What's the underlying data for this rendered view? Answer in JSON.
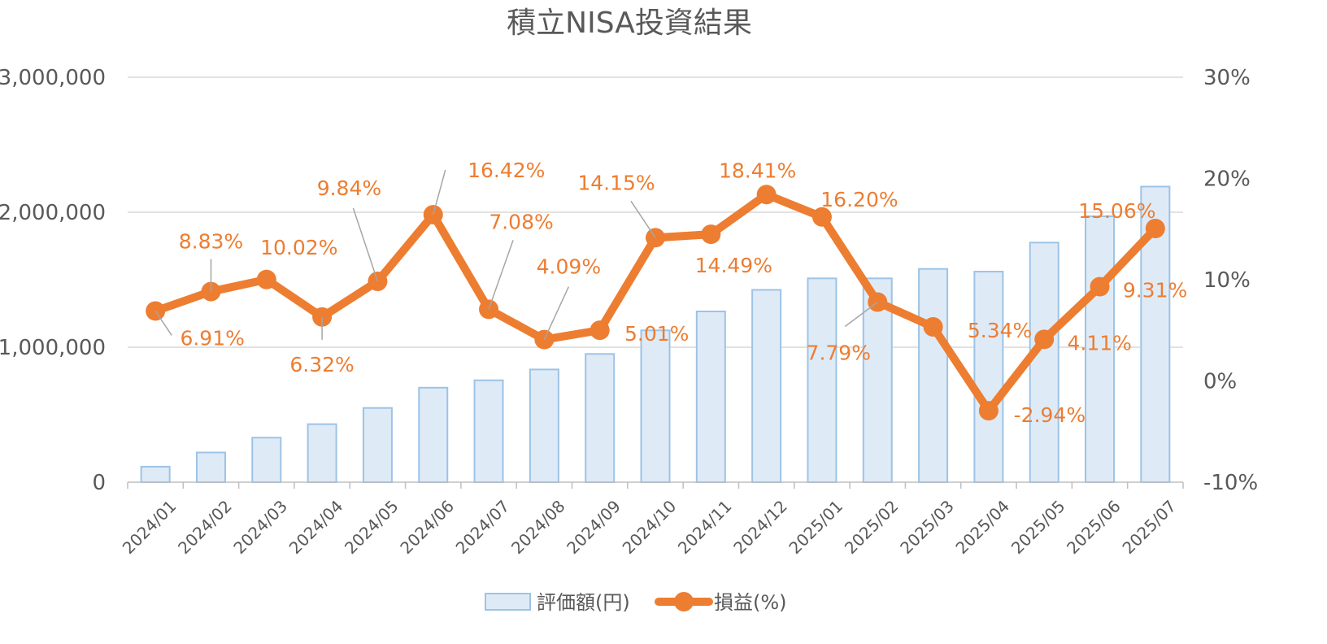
{
  "chart_data": {
    "type": "bar+line",
    "title": "積立NISA投資結果",
    "categories": [
      "2024/01",
      "2024/02",
      "2024/03",
      "2024/04",
      "2024/05",
      "2024/06",
      "2024/07",
      "2024/08",
      "2024/09",
      "2024/10",
      "2024/11",
      "2024/12",
      "2025/01",
      "2025/02",
      "2025/03",
      "2025/04",
      "2025/05",
      "2025/06",
      "2025/07"
    ],
    "left_axis": {
      "ticks": [
        "0",
        "1,000,000",
        "2,000,000",
        "3,000,000"
      ],
      "ylim": [
        0,
        3000000
      ]
    },
    "right_axis": {
      "ticks": [
        "-10%",
        "0%",
        "10%",
        "20%",
        "30%"
      ],
      "ylim": [
        -10,
        30
      ]
    },
    "grid": true,
    "legend_position": "bottom",
    "series": [
      {
        "name": "評価額(円)",
        "type": "bar",
        "axis": "left",
        "color": "#DEEBF7",
        "border_color": "#9DC3E6",
        "values": [
          115000,
          220000,
          330000,
          430000,
          550000,
          700000,
          755000,
          835000,
          950000,
          1125000,
          1265000,
          1425000,
          1510000,
          1510000,
          1580000,
          1560000,
          1775000,
          1970000,
          2190000
        ]
      },
      {
        "name": "損益(%)",
        "type": "line",
        "axis": "right",
        "color": "#ED7D31",
        "values": [
          6.91,
          8.83,
          10.02,
          6.32,
          9.84,
          16.42,
          7.08,
          4.09,
          5.01,
          14.15,
          14.49,
          18.41,
          16.2,
          7.79,
          5.34,
          -2.94,
          4.11,
          9.31,
          15.06
        ],
        "labels": [
          "6.91%",
          "8.83%",
          "10.02%",
          "6.32%",
          "9.84%",
          "16.42%",
          "7.08%",
          "4.09%",
          "5.01%",
          "14.15%",
          "14.49%",
          "18.41%",
          "16.20%",
          "7.79%",
          "5.34%",
          "-2.94%",
          "4.11%",
          "9.31%",
          "15.06%"
        ]
      }
    ]
  }
}
